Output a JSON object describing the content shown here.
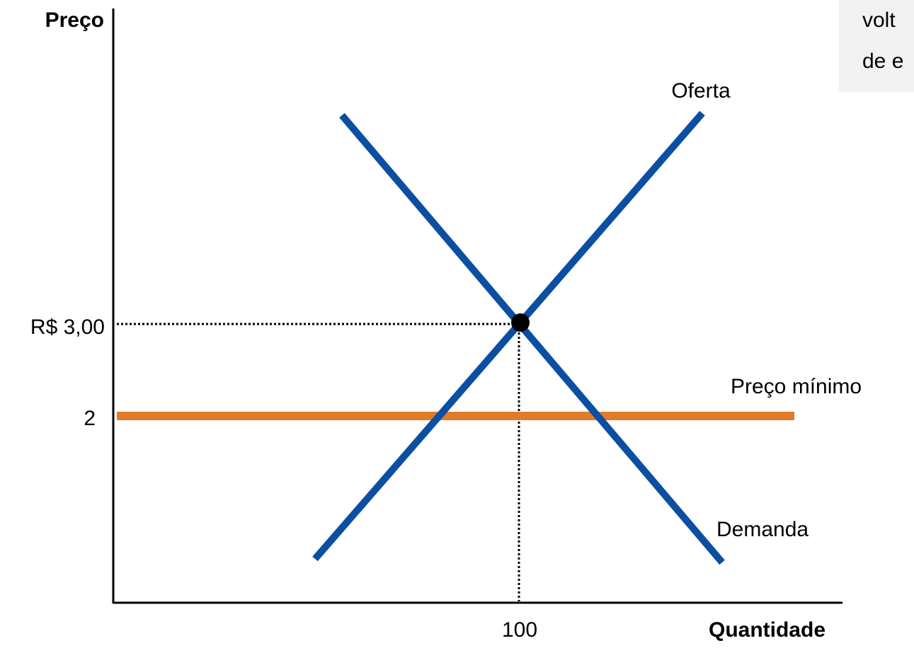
{
  "axes": {
    "y_label": "Preço",
    "x_label": "Quantidade"
  },
  "ticks": {
    "equilibrium_price": "R$ 3,00",
    "floor_price": "2",
    "equilibrium_quantity": "100"
  },
  "curves": {
    "supply": "Oferta",
    "demand": "Demanda",
    "floor": "Preço mínimo"
  },
  "note": {
    "lines": [
      "volt",
      "de e"
    ]
  }
}
